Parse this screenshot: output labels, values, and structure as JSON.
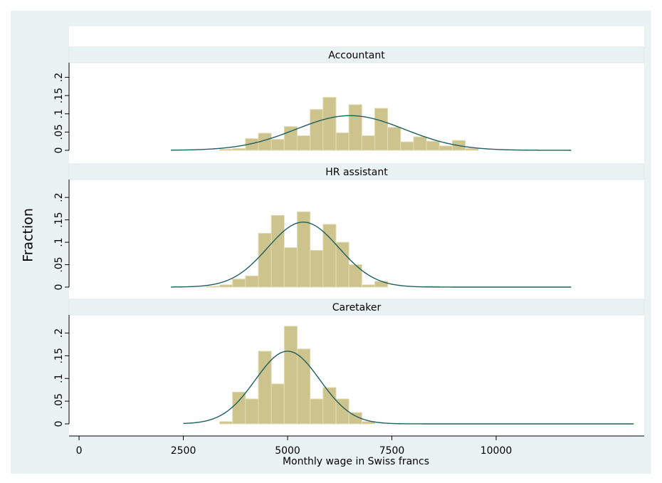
{
  "chart_data": {
    "type": "histogram",
    "y_label": "Fraction",
    "x_label": "Monthly wage in Swiss francs",
    "bins": [
      3060,
      3370,
      3680,
      3990,
      4300,
      4610,
      4920,
      5230,
      5540,
      5850,
      6160,
      6470,
      6780,
      7090,
      7400,
      7710,
      8020,
      8330,
      8640,
      8950,
      9260,
      9570
    ],
    "color": "#cdc38d",
    "edge_color": "#e3dcb4",
    "curve_color": "#1f5f5f",
    "xlim": [
      -240,
      13550
    ],
    "xticks": [
      0,
      2500,
      5000,
      7500,
      10000
    ],
    "ylim": [
      0,
      0.24
    ],
    "yticks": [
      0,
      {
        "value": 0.05,
        "label": ".05"
      },
      {
        "value": 0.1,
        "label": ".1"
      },
      {
        "value": 0.15,
        "label": ".15"
      },
      {
        "value": 0.2,
        "label": ".2"
      }
    ],
    "panels": [
      {
        "title": "Accountant",
        "values": [
          0,
          0.003,
          0.005,
          0.032,
          0.047,
          0.03,
          0.065,
          0.04,
          0.112,
          0.145,
          0.048,
          0.125,
          0.04,
          0.115,
          0.063,
          0.023,
          0.037,
          0.025,
          0.012,
          0.027,
          0.005
        ],
        "fit": {
          "mean": 6500,
          "sd": 1302,
          "from": 2200,
          "to": 11800
        }
      },
      {
        "title": "HR assistant",
        "values": [
          0.002,
          0.005,
          0.018,
          0.025,
          0.12,
          0.16,
          0.088,
          0.168,
          0.082,
          0.14,
          0.1,
          0.05,
          0.005,
          0.013,
          0,
          0,
          0,
          0.002,
          0,
          0,
          0
        ],
        "fit": {
          "mean": 5375,
          "sd": 853,
          "from": 2200,
          "to": 11800
        }
      },
      {
        "title": "Caretaker",
        "values": [
          0,
          0.005,
          0.07,
          0.055,
          0.16,
          0.088,
          0.215,
          0.165,
          0.055,
          0.08,
          0.055,
          0.025,
          0.005,
          0,
          0,
          0,
          0,
          0,
          0,
          0,
          0
        ],
        "fit": {
          "mean": 5000,
          "sd": 773,
          "from": 2500,
          "to": 13300
        }
      }
    ]
  }
}
